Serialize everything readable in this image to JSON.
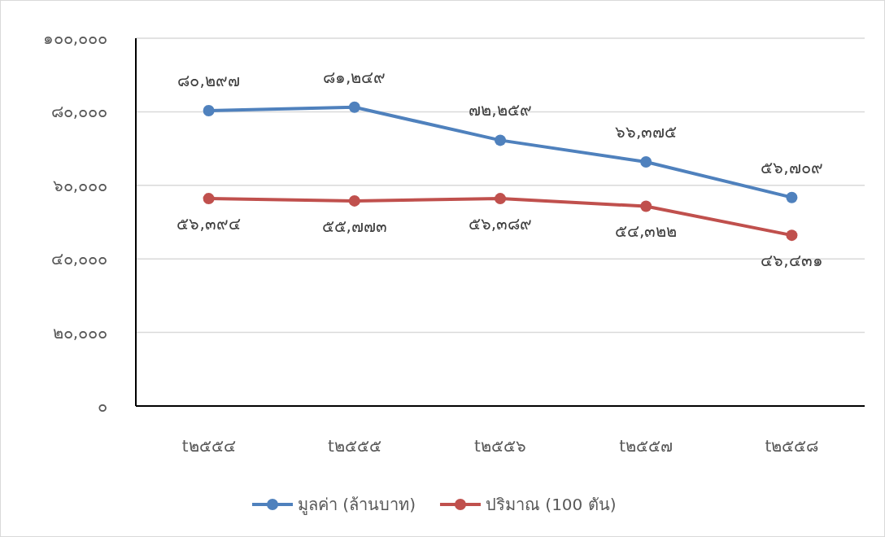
{
  "chart_data": {
    "type": "line",
    "categories": [
      "t๒๕๕๔",
      "t๒๕๕๕",
      "t๒๕๕๖",
      "t๒๕๕๗",
      "t๒๕๕๘"
    ],
    "series": [
      {
        "name": "มูลค่า (ล้านบาท)",
        "color": "#4f81bd",
        "values": [
          80297,
          81249,
          72259,
          66375,
          56709
        ],
        "value_labels": [
          "๘๐,๒๙๗",
          "๘๑,๒๔๙",
          "๗๒,๒๕๙",
          "๖๖,๓๗๕",
          "๕๖,๗๐๙"
        ]
      },
      {
        "name": "ปริมาณ (100 ตัน)",
        "color": "#c0504d",
        "values": [
          56394,
          55773,
          56389,
          54322,
          46431
        ],
        "value_labels": [
          "๕๖,๓๙๔",
          "๕๕,๗๗๓",
          "๕๖,๓๘๙",
          "๕๔,๓๒๒",
          "๔๖,๔๓๑"
        ]
      }
    ],
    "ylim": [
      0,
      100000
    ],
    "yticks": [
      {
        "value": 0,
        "label": "๐"
      },
      {
        "value": 20000,
        "label": "๒๐,๐๐๐"
      },
      {
        "value": 40000,
        "label": "๔๐,๐๐๐"
      },
      {
        "value": 60000,
        "label": "๖๐,๐๐๐"
      },
      {
        "value": 80000,
        "label": "๘๐,๐๐๐"
      },
      {
        "value": 100000,
        "label": "๑๐๐,๐๐๐"
      }
    ],
    "grid": "y",
    "legend": "bottom",
    "marker": "circle",
    "line_style": "solid"
  }
}
